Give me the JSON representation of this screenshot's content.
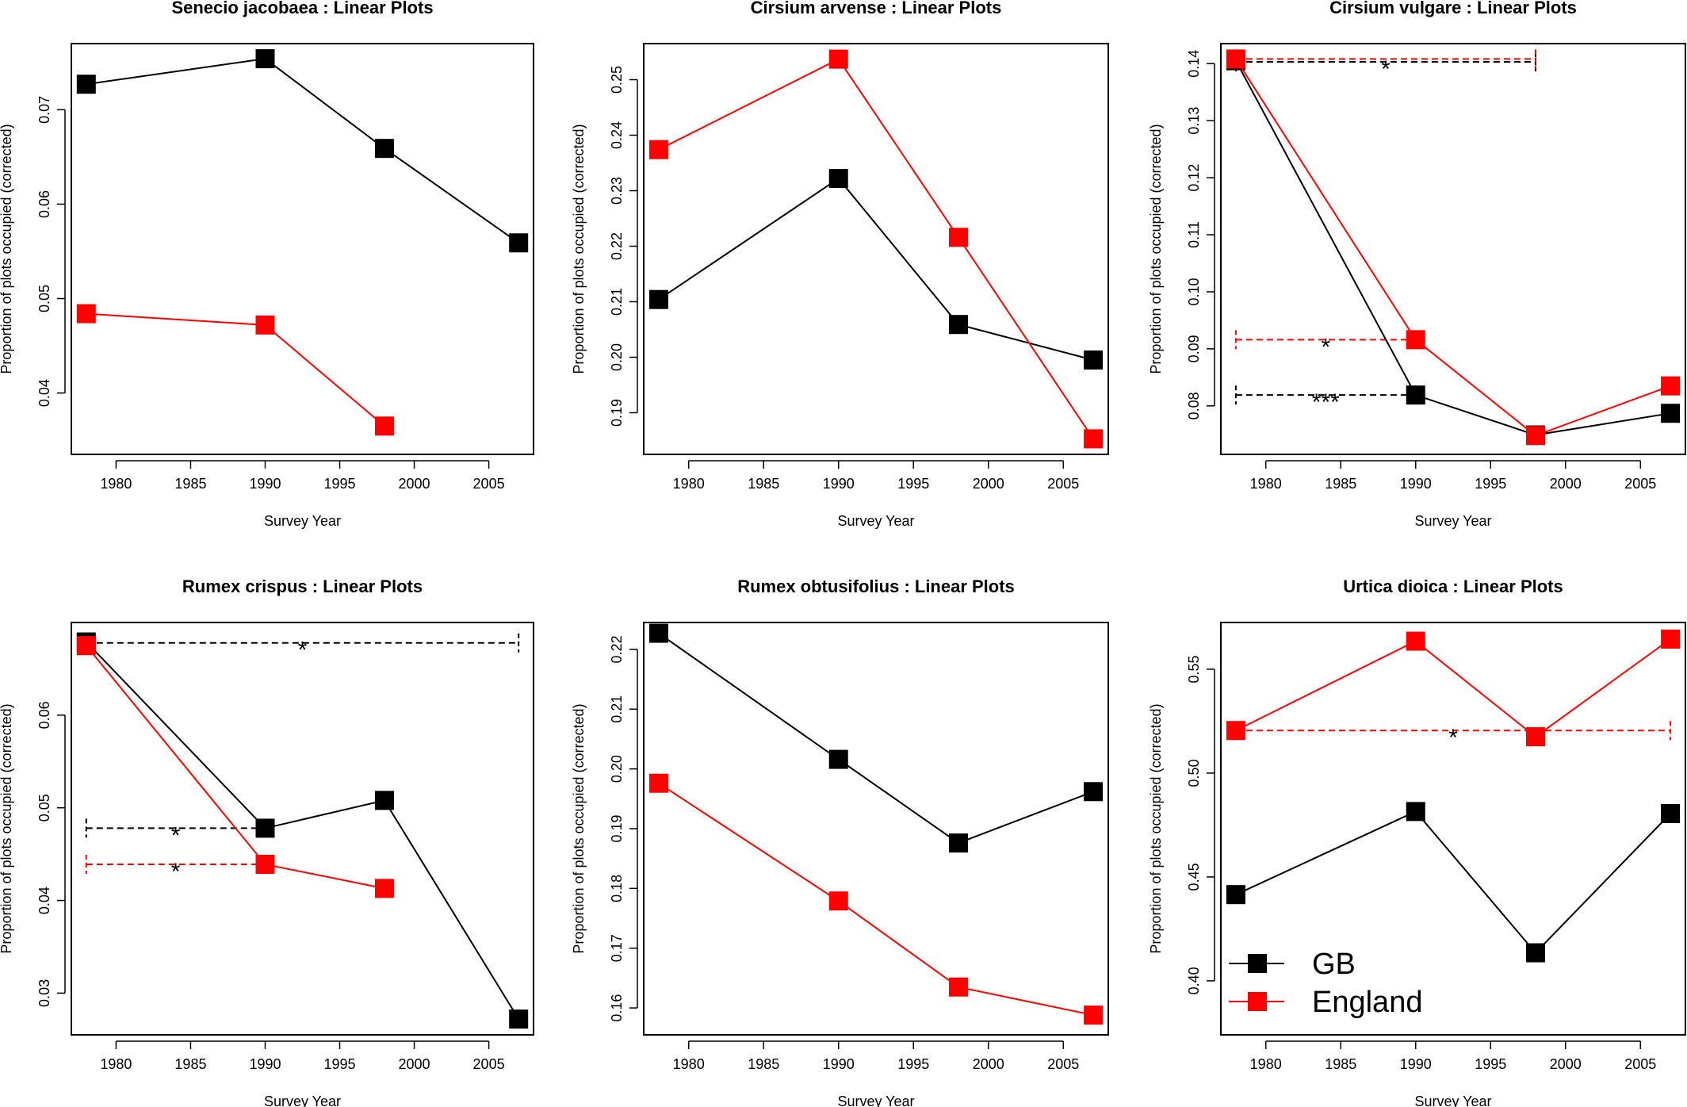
{
  "colors": {
    "GB": "#000000",
    "England": "#ff0000"
  },
  "legend": {
    "items": [
      {
        "label": "GB",
        "color": "#000000"
      },
      {
        "label": "England",
        "color": "#ff0000"
      }
    ]
  },
  "chart_data": [
    {
      "type": "line",
      "title": "Senecio jacobaea  : Linear Plots",
      "xlabel": "Survey Year",
      "ylabel": "Proportion of plots occupied (corrected)",
      "xlim": [
        1977,
        2008
      ],
      "ylim": [
        0.0335,
        0.077
      ],
      "xticks": [
        1980,
        1985,
        1990,
        1995,
        2000,
        2005
      ],
      "yticks": [
        0.04,
        0.05,
        0.06,
        0.07
      ],
      "ytick_labels": [
        "0.04",
        "0.05",
        "0.06",
        "0.07"
      ],
      "series": [
        {
          "name": "GB",
          "x": [
            1978,
            1990,
            1998,
            2007
          ],
          "y": [
            0.0727,
            0.0754,
            0.0659,
            0.0559
          ]
        },
        {
          "name": "England",
          "x": [
            1978,
            1990,
            1998
          ],
          "y": [
            0.0484,
            0.0472,
            0.0365
          ]
        }
      ],
      "annotations": []
    },
    {
      "type": "line",
      "title": "Cirsium arvense  : Linear Plots",
      "xlabel": "Survey Year",
      "ylabel": "Proportion of plots occupied (corrected)",
      "xlim": [
        1977,
        2008
      ],
      "ylim": [
        0.1825,
        0.2565
      ],
      "xticks": [
        1980,
        1985,
        1990,
        1995,
        2000,
        2005
      ],
      "yticks": [
        0.19,
        0.2,
        0.21,
        0.22,
        0.23,
        0.24,
        0.25
      ],
      "ytick_labels": [
        "0.19",
        "0.20",
        "0.21",
        "0.22",
        "0.23",
        "0.24",
        "0.25"
      ],
      "series": [
        {
          "name": "GB",
          "x": [
            1978,
            1990,
            1998,
            2007
          ],
          "y": [
            0.2104,
            0.2322,
            0.2059,
            0.1995
          ]
        },
        {
          "name": "England",
          "x": [
            1978,
            1990,
            1998,
            2007
          ],
          "y": [
            0.2374,
            0.2537,
            0.2216,
            0.1853
          ]
        }
      ],
      "annotations": []
    },
    {
      "type": "line",
      "title": "Cirsium vulgare  : Linear Plots",
      "xlabel": "Survey Year",
      "ylabel": "Proportion of plots occupied (corrected)",
      "xlim": [
        1977,
        2008
      ],
      "ylim": [
        0.0715,
        0.1435
      ],
      "xticks": [
        1980,
        1985,
        1990,
        1995,
        2000,
        2005
      ],
      "yticks": [
        0.08,
        0.09,
        0.1,
        0.11,
        0.12,
        0.13,
        0.14
      ],
      "ytick_labels": [
        "0.08",
        "0.09",
        "0.10",
        "0.11",
        "0.12",
        "0.13",
        "0.14"
      ],
      "series": [
        {
          "name": "GB",
          "x": [
            1978,
            1990,
            1998,
            2007
          ],
          "y": [
            0.1405,
            0.0819,
            0.0749,
            0.0787
          ]
        },
        {
          "name": "England",
          "x": [
            1978,
            1990,
            1998,
            2007
          ],
          "y": [
            0.1408,
            0.0916,
            0.0748,
            0.0835
          ]
        }
      ],
      "annotations": [
        {
          "series": "GB",
          "x0": 1978,
          "x1": 1998,
          "y": 0.1403,
          "label": "*",
          "label_x": 1988
        },
        {
          "series": "England",
          "x0": 1978,
          "x1": 1998,
          "y": 0.1408,
          "label": "",
          "label_x": 1988
        },
        {
          "series": "England",
          "x0": 1978,
          "x1": 1990,
          "y": 0.0916,
          "label": "*",
          "label_x": 1984
        },
        {
          "series": "GB",
          "x0": 1978,
          "x1": 1990,
          "y": 0.0819,
          "label": "***",
          "label_x": 1984
        }
      ]
    },
    {
      "type": "line",
      "title": "Rumex crispus  : Linear Plots",
      "xlabel": "Survey Year",
      "ylabel": "Proportion of plots occupied (corrected)",
      "xlim": [
        1977,
        2008
      ],
      "ylim": [
        0.0255,
        0.07
      ],
      "xticks": [
        1980,
        1985,
        1990,
        1995,
        2000,
        2005
      ],
      "yticks": [
        0.03,
        0.04,
        0.05,
        0.06
      ],
      "ytick_labels": [
        "0.03",
        "0.04",
        "0.05",
        "0.06"
      ],
      "series": [
        {
          "name": "GB",
          "x": [
            1978,
            1990,
            1998,
            2007
          ],
          "y": [
            0.0679,
            0.0478,
            0.0508,
            0.0272
          ]
        },
        {
          "name": "England",
          "x": [
            1978,
            1990,
            1998
          ],
          "y": [
            0.0675,
            0.0439,
            0.0413
          ]
        }
      ],
      "annotations": [
        {
          "series": "GB",
          "x0": 1978,
          "x1": 2007,
          "y": 0.0678,
          "label": "*",
          "label_x": 1992.5
        },
        {
          "series": "GB",
          "x0": 1978,
          "x1": 1990,
          "y": 0.0478,
          "label": "*",
          "label_x": 1984
        },
        {
          "series": "England",
          "x0": 1978,
          "x1": 1990,
          "y": 0.0439,
          "label": "*",
          "label_x": 1984
        }
      ]
    },
    {
      "type": "line",
      "title": "Rumex obtusifolius  : Linear Plots",
      "xlabel": "Survey Year",
      "ylabel": "Proportion of plots occupied (corrected)",
      "xlim": [
        1977,
        2008
      ],
      "ylim": [
        0.1555,
        0.2245
      ],
      "xticks": [
        1980,
        1985,
        1990,
        1995,
        2000,
        2005
      ],
      "yticks": [
        0.16,
        0.17,
        0.18,
        0.19,
        0.2,
        0.21,
        0.22
      ],
      "ytick_labels": [
        "0.16",
        "0.17",
        "0.18",
        "0.19",
        "0.20",
        "0.21",
        "0.22"
      ],
      "series": [
        {
          "name": "GB",
          "x": [
            1978,
            1990,
            1998,
            2007
          ],
          "y": [
            0.2227,
            0.2016,
            0.1876,
            0.1962
          ]
        },
        {
          "name": "England",
          "x": [
            1978,
            1990,
            1998,
            2007
          ],
          "y": [
            0.1976,
            0.1779,
            0.1635,
            0.1588
          ]
        }
      ],
      "annotations": []
    },
    {
      "type": "line",
      "title": "Urtica dioica  : Linear Plots",
      "xlabel": "Survey Year",
      "ylabel": "Proportion of plots occupied (corrected)",
      "xlim": [
        1977,
        2008
      ],
      "ylim": [
        0.374,
        0.5725
      ],
      "xticks": [
        1980,
        1985,
        1990,
        1995,
        2000,
        2005
      ],
      "yticks": [
        0.4,
        0.45,
        0.5,
        0.55
      ],
      "ytick_labels": [
        "0.40",
        "0.45",
        "0.50",
        "0.55"
      ],
      "series": [
        {
          "name": "GB",
          "x": [
            1978,
            1990,
            1998,
            2007
          ],
          "y": [
            0.4415,
            0.4815,
            0.4135,
            0.4805
          ]
        },
        {
          "name": "England",
          "x": [
            1978,
            1990,
            1998,
            2007
          ],
          "y": [
            0.5205,
            0.5635,
            0.5175,
            0.5645
          ]
        }
      ],
      "annotations": [
        {
          "series": "England",
          "x0": 1978,
          "x1": 2007,
          "y": 0.5205,
          "label": "*",
          "label_x": 1992.5
        }
      ]
    }
  ]
}
